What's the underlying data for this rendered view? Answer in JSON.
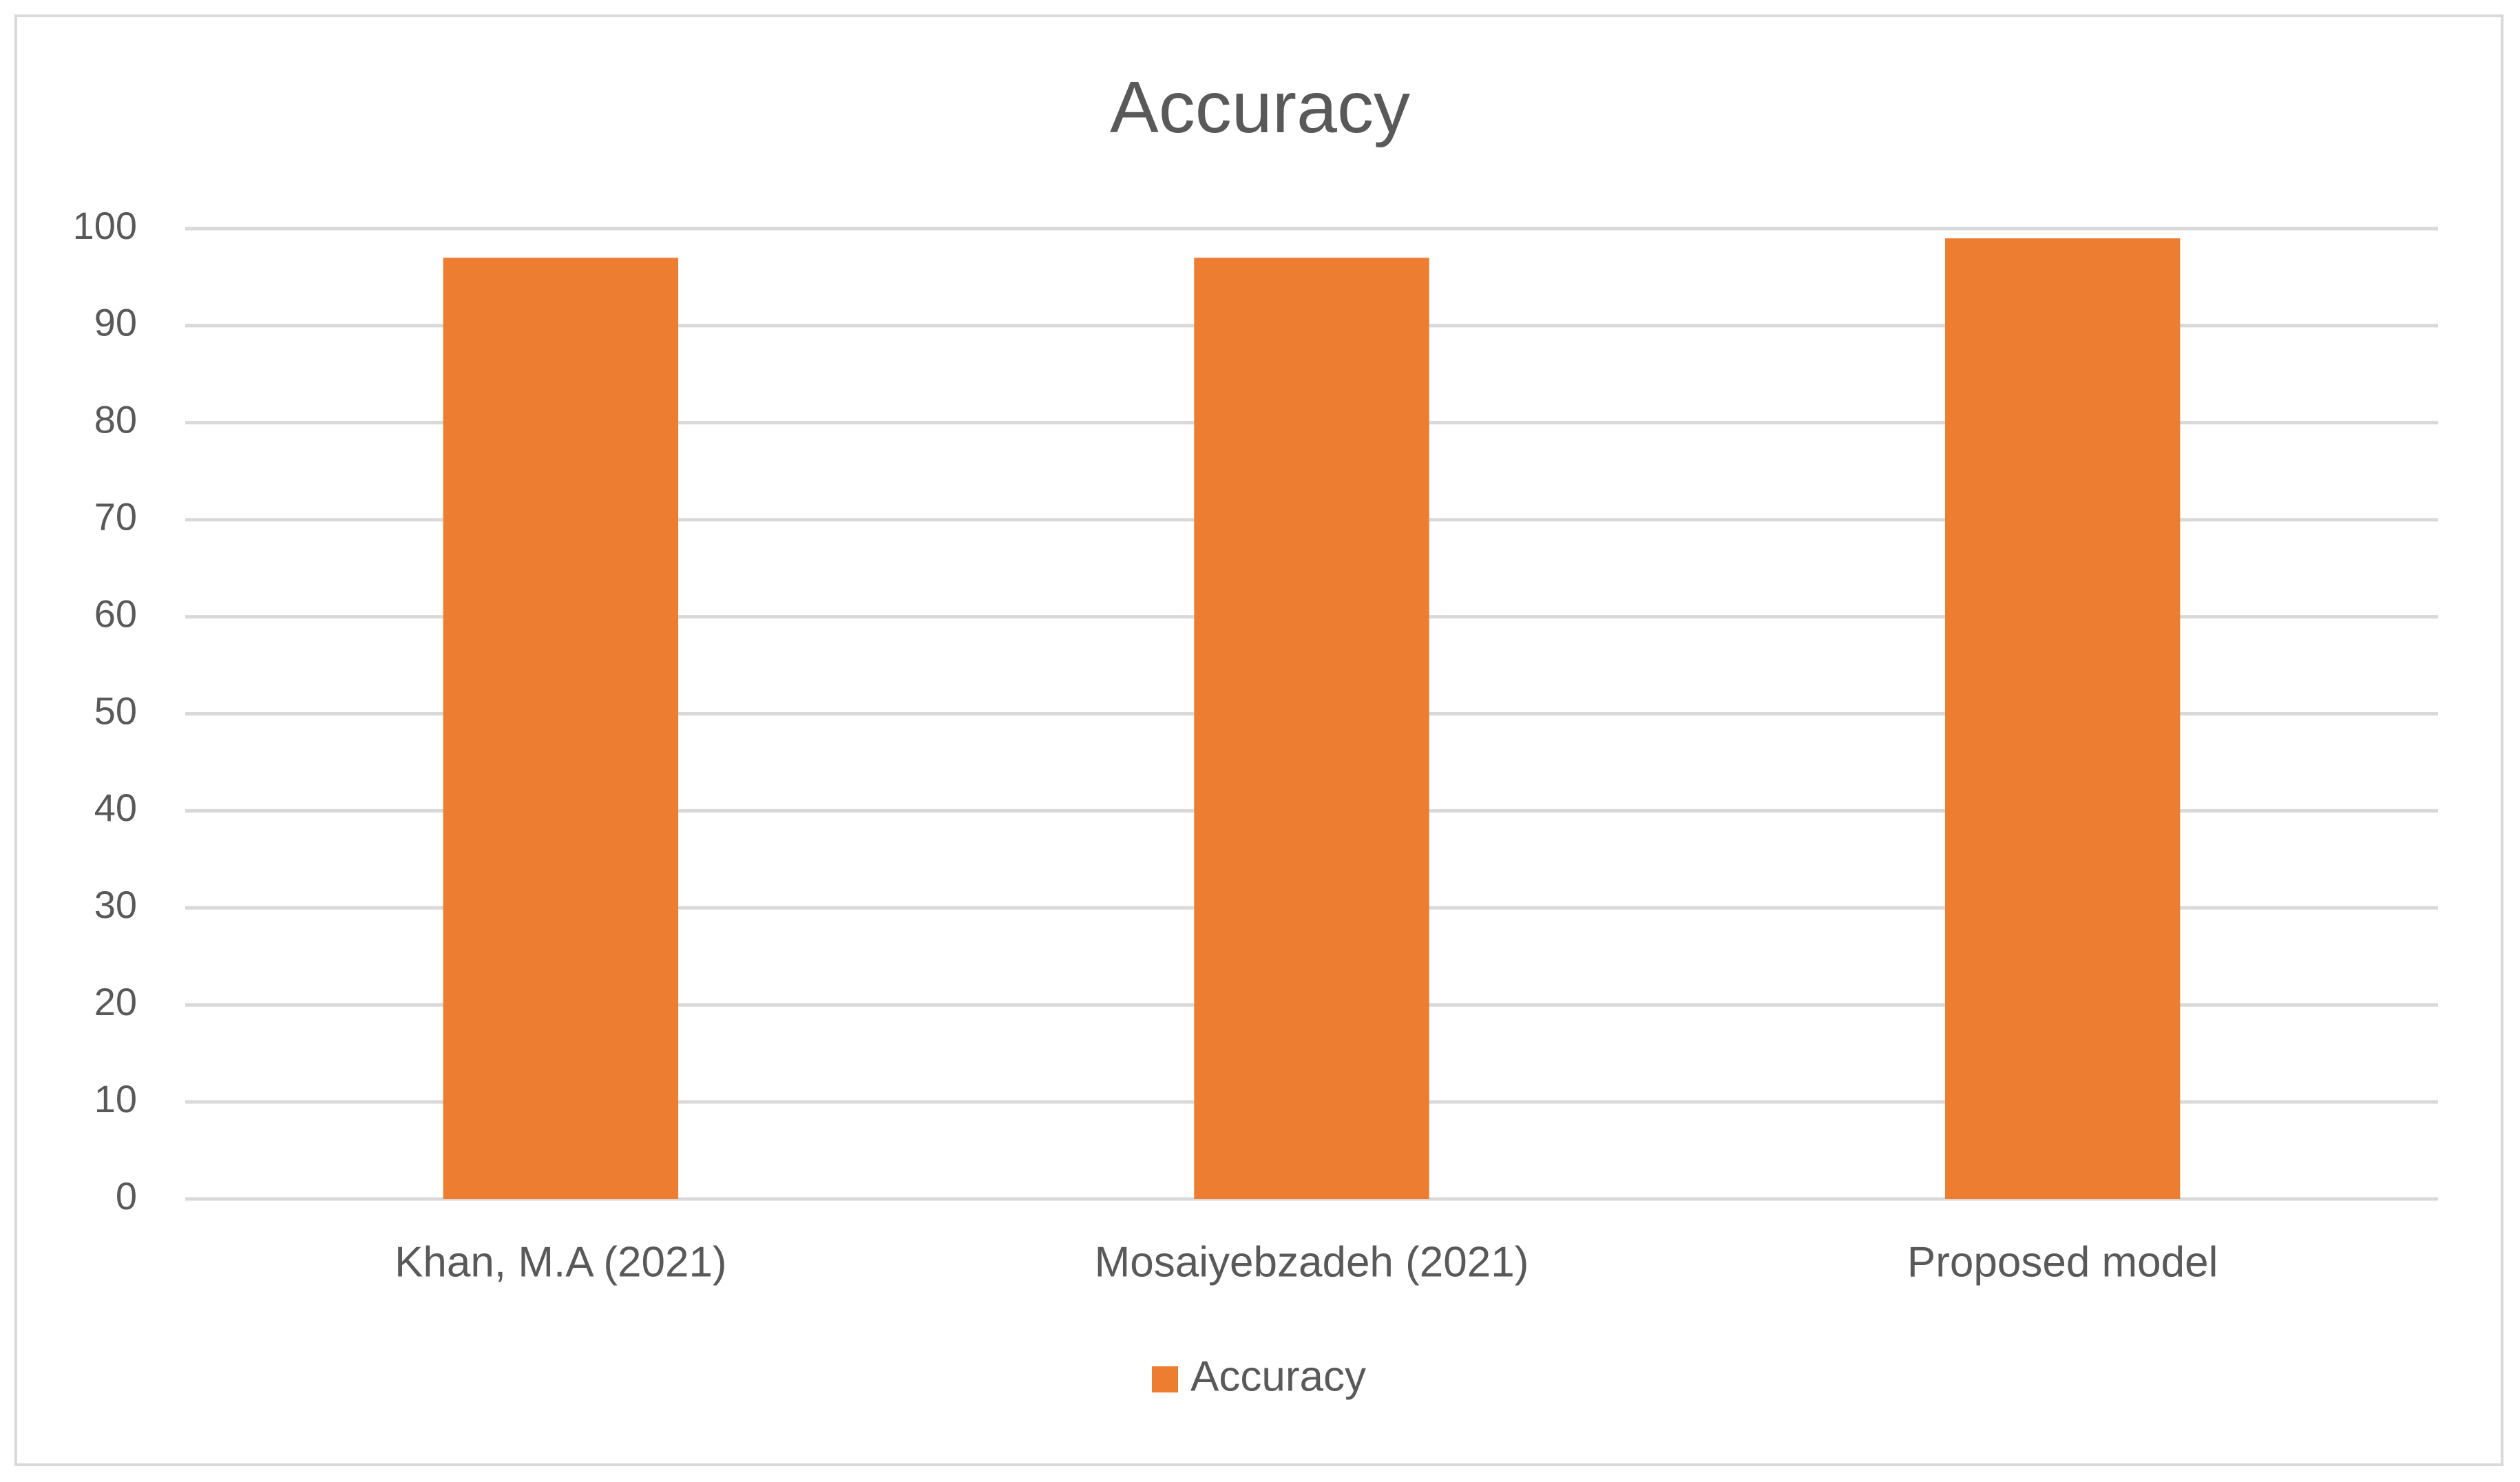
{
  "chart_data": {
    "type": "bar",
    "title": "Accuracy",
    "categories": [
      "Khan, M.A (2021)",
      "Mosaiyebzadeh (2021)",
      "Proposed model"
    ],
    "series": [
      {
        "name": "Accuracy",
        "color": "#ed7d31",
        "values": [
          97,
          97,
          99
        ]
      }
    ],
    "ylim": [
      0,
      100
    ],
    "yticks": [
      0,
      10,
      20,
      30,
      40,
      50,
      60,
      70,
      80,
      90,
      100
    ],
    "grid": true,
    "legend": "bottom"
  }
}
